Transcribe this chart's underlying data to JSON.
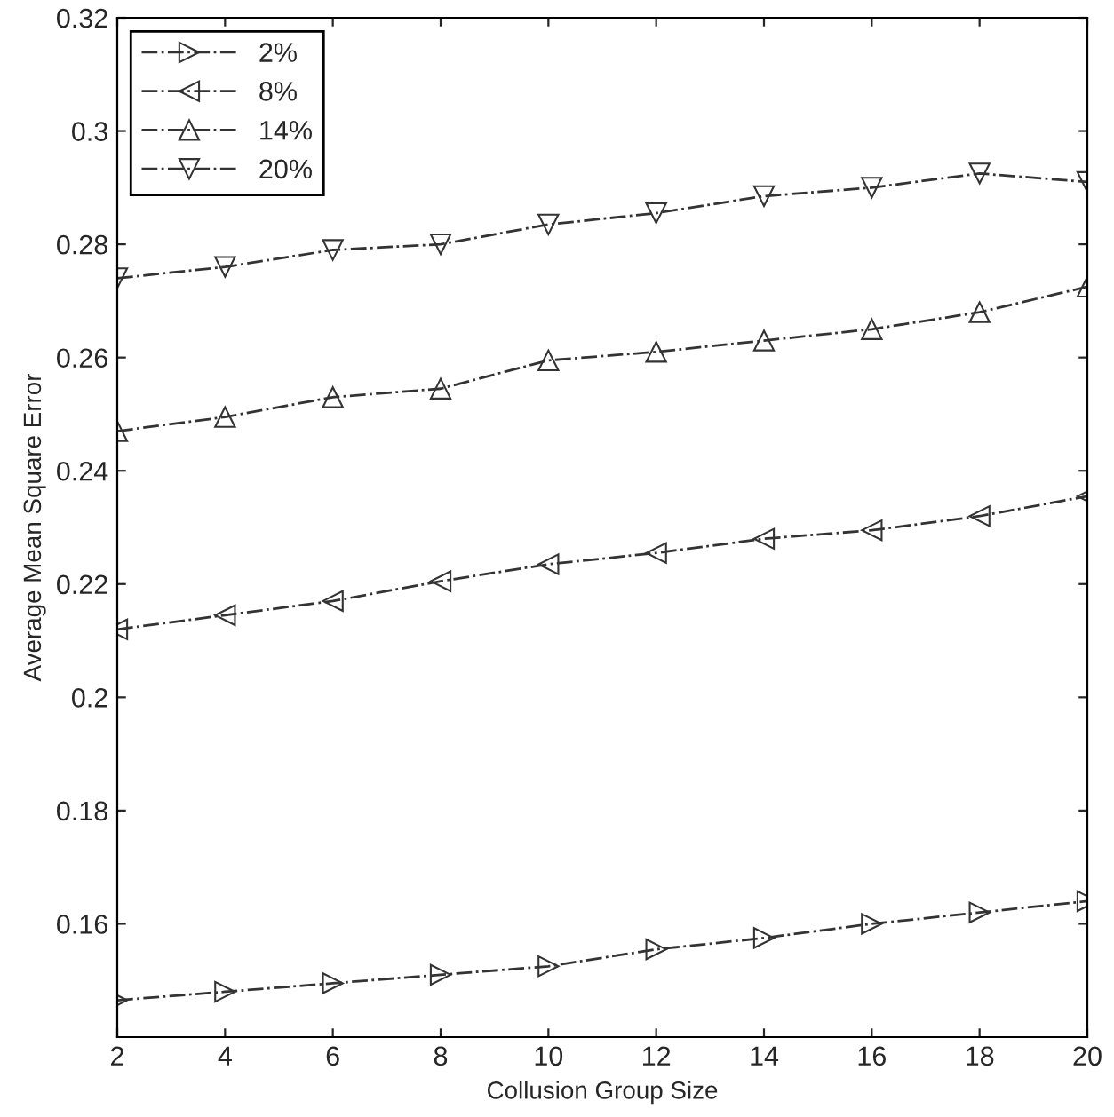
{
  "chart_data": {
    "type": "line",
    "xlabel": "Collusion Group Size",
    "ylabel": "Average Mean Square Error",
    "x": [
      2,
      4,
      6,
      8,
      10,
      12,
      14,
      16,
      18,
      20
    ],
    "series": [
      {
        "name": "2%",
        "color": "#333333",
        "marker": "triangle-right",
        "values": [
          0.1465,
          0.148,
          0.1495,
          0.151,
          0.1525,
          0.1555,
          0.1575,
          0.16,
          0.162,
          0.164
        ]
      },
      {
        "name": "8%",
        "color": "#333333",
        "marker": "triangle-left",
        "values": [
          0.212,
          0.2145,
          0.217,
          0.2205,
          0.2235,
          0.2255,
          0.228,
          0.2295,
          0.232,
          0.2355
        ]
      },
      {
        "name": "14%",
        "color": "#333333",
        "marker": "triangle-up",
        "values": [
          0.247,
          0.2495,
          0.253,
          0.2545,
          0.2595,
          0.261,
          0.263,
          0.265,
          0.268,
          0.2725
        ]
      },
      {
        "name": "20%",
        "color": "#333333",
        "marker": "triangle-down",
        "values": [
          0.274,
          0.276,
          0.279,
          0.28,
          0.2835,
          0.2855,
          0.2885,
          0.29,
          0.2925,
          0.291
        ]
      }
    ],
    "xlim": [
      2,
      20
    ],
    "xticks": [
      2,
      4,
      6,
      8,
      10,
      12,
      14,
      16,
      18,
      20
    ],
    "ylim": [
      0.14,
      0.32
    ],
    "yticks": [
      0.16,
      0.18,
      0.2,
      0.22,
      0.24,
      0.26,
      0.28,
      0.3,
      0.32
    ],
    "line_style": "dashdot",
    "grid": false,
    "legend": "top left"
  }
}
